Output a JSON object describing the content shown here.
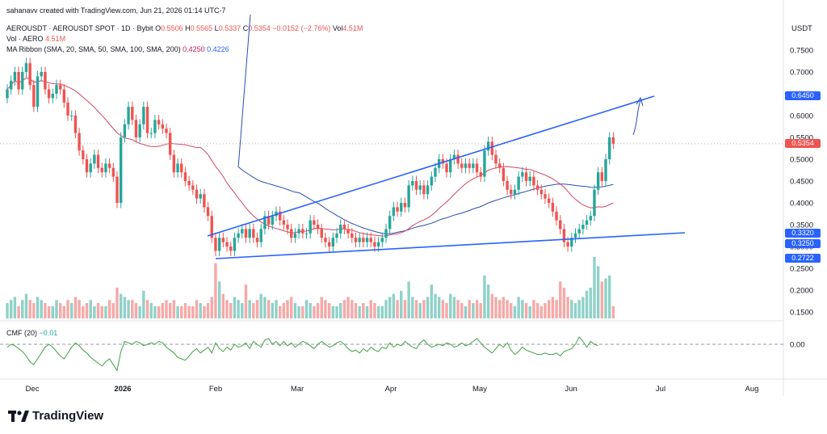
{
  "header": {
    "created": "sahanavv created with TradingView.com, Jun 21, 2026 01:14 UTC-7",
    "symbol": "AEROUSDT · AEROUSDT SPOT · 1D · Bybit",
    "o_label": "O",
    "o": "0.5506",
    "h_label": "H",
    "h": "0.5565",
    "l_label": "L",
    "l": "0.5337",
    "c_label": "C",
    "c": "0.5354",
    "change": "−0.0152 (−2.76%)",
    "vol_label": "Vol",
    "vol": "4.51M",
    "vol_row_label": "Vol · AERO",
    "vol_row_value": "4.51M",
    "ma_label": "MA Ribbon (SMA, 20, SMA, 50, SMA, 100, SMA, 200)",
    "ma_val1": "0.4250",
    "ma_val2": "0.4226",
    "cmf_label": "CMF (20)",
    "cmf_value": "−0.01",
    "currency": "USDT"
  },
  "colors": {
    "up": "#26a69a",
    "down": "#ef5350",
    "ma50": "#d84565",
    "ma100": "#2a4db5",
    "trend": "#2962ff",
    "cmf": "#43a047"
  },
  "tags": {
    "t1": "0.6450",
    "t2": "0.5354",
    "t3": "0.3320",
    "t4": "0.3250",
    "t5": "0.2722"
  },
  "logo": {
    "text": "TradingView"
  },
  "chart_data": {
    "type": "candlestick",
    "x_ticks": [
      "Dec",
      "2026",
      "Feb",
      "Mar",
      "Apr",
      "May",
      "Jun",
      "Jul",
      "Aug"
    ],
    "y_ticks": [
      "0.7500",
      "0.7000",
      "0.6500",
      "0.6000",
      "0.5500",
      "0.5000",
      "0.4500",
      "0.4000",
      "0.3500",
      "0.3000",
      "0.2500",
      "0.2000",
      "0.1500"
    ],
    "cmf_ticks": [
      "0.00"
    ],
    "ylim": [
      0.13,
      0.8
    ],
    "close": [
      0.66,
      0.68,
      0.7,
      0.66,
      0.7,
      0.72,
      0.67,
      0.62,
      0.69,
      0.7,
      0.66,
      0.64,
      0.65,
      0.67,
      0.66,
      0.63,
      0.6,
      0.6,
      0.56,
      0.52,
      0.5,
      0.47,
      0.49,
      0.51,
      0.48,
      0.47,
      0.49,
      0.48,
      0.46,
      0.4,
      0.55,
      0.58,
      0.62,
      0.59,
      0.55,
      0.58,
      0.62,
      0.56,
      0.56,
      0.59,
      0.58,
      0.57,
      0.56,
      0.51,
      0.47,
      0.49,
      0.47,
      0.45,
      0.44,
      0.43,
      0.41,
      0.42,
      0.39,
      0.37,
      0.32,
      0.29,
      0.32,
      0.31,
      0.3,
      0.29,
      0.32,
      0.33,
      0.34,
      0.32,
      0.34,
      0.32,
      0.31,
      0.34,
      0.37,
      0.35,
      0.37,
      0.38,
      0.36,
      0.35,
      0.34,
      0.32,
      0.33,
      0.34,
      0.33,
      0.33,
      0.36,
      0.35,
      0.34,
      0.32,
      0.31,
      0.3,
      0.32,
      0.33,
      0.35,
      0.34,
      0.33,
      0.32,
      0.31,
      0.32,
      0.31,
      0.32,
      0.31,
      0.3,
      0.31,
      0.32,
      0.34,
      0.37,
      0.39,
      0.38,
      0.4,
      0.39,
      0.44,
      0.45,
      0.43,
      0.44,
      0.42,
      0.44,
      0.46,
      0.48,
      0.5,
      0.49,
      0.47,
      0.5,
      0.51,
      0.49,
      0.48,
      0.49,
      0.48,
      0.49,
      0.47,
      0.46,
      0.52,
      0.54,
      0.51,
      0.49,
      0.48,
      0.45,
      0.43,
      0.42,
      0.43,
      0.46,
      0.47,
      0.45,
      0.46,
      0.44,
      0.43,
      0.42,
      0.41,
      0.4,
      0.38,
      0.36,
      0.34,
      0.31,
      0.3,
      0.32,
      0.33,
      0.34,
      0.35,
      0.36,
      0.37,
      0.43,
      0.47,
      0.45,
      0.5,
      0.55,
      0.5354
    ],
    "volume_pct": [
      0.25,
      0.3,
      0.35,
      0.2,
      0.3,
      0.4,
      0.3,
      0.25,
      0.35,
      0.3,
      0.25,
      0.2,
      0.2,
      0.3,
      0.25,
      0.2,
      0.3,
      0.25,
      0.35,
      0.3,
      0.2,
      0.25,
      0.3,
      0.2,
      0.25,
      0.2,
      0.2,
      0.3,
      0.25,
      0.5,
      0.4,
      0.35,
      0.3,
      0.3,
      0.25,
      0.2,
      0.45,
      0.3,
      0.25,
      0.2,
      0.2,
      0.25,
      0.3,
      0.25,
      0.3,
      0.2,
      0.2,
      0.25,
      0.2,
      0.2,
      0.3,
      0.25,
      0.2,
      0.25,
      0.35,
      0.9,
      0.6,
      0.4,
      0.3,
      0.25,
      0.35,
      0.3,
      0.25,
      0.55,
      0.3,
      0.25,
      0.3,
      0.4,
      0.35,
      0.3,
      0.25,
      0.3,
      0.2,
      0.25,
      0.3,
      0.35,
      0.25,
      0.2,
      0.2,
      0.3,
      0.25,
      0.2,
      0.25,
      0.35,
      0.3,
      0.25,
      0.2,
      0.2,
      0.25,
      0.3,
      0.35,
      0.3,
      0.25,
      0.2,
      0.25,
      0.2,
      0.3,
      0.25,
      0.2,
      0.2,
      0.3,
      0.35,
      0.4,
      0.3,
      0.45,
      0.3,
      0.6,
      0.35,
      0.3,
      0.25,
      0.3,
      0.35,
      0.55,
      0.4,
      0.35,
      0.3,
      0.25,
      0.4,
      0.35,
      0.3,
      0.25,
      0.2,
      0.3,
      0.25,
      0.3,
      0.25,
      0.7,
      0.55,
      0.4,
      0.35,
      0.3,
      0.35,
      0.3,
      0.25,
      0.2,
      0.35,
      0.3,
      0.25,
      0.2,
      0.3,
      0.25,
      0.2,
      0.25,
      0.3,
      0.35,
      0.3,
      0.6,
      0.5,
      0.35,
      0.3,
      0.25,
      0.3,
      0.35,
      0.45,
      0.5,
      1.0,
      0.85,
      0.6,
      0.65,
      0.7,
      0.2
    ],
    "cmf": [
      -0.02,
      0.0,
      -0.01,
      -0.03,
      -0.05,
      -0.08,
      -0.12,
      -0.14,
      -0.1,
      -0.06,
      -0.02,
      0.0,
      -0.02,
      -0.05,
      -0.08,
      -0.1,
      -0.06,
      -0.02,
      0.01,
      -0.01,
      -0.04,
      -0.06,
      -0.09,
      -0.11,
      -0.13,
      -0.15,
      -0.12,
      -0.1,
      -0.14,
      -0.18,
      -0.05,
      0.02,
      0.01,
      0.0,
      0.02,
      0.01,
      -0.01,
      0.0,
      0.01,
      0.0,
      0.02,
      0.01,
      -0.02,
      -0.04,
      -0.06,
      -0.09,
      -0.1,
      -0.11,
      -0.08,
      -0.05,
      -0.03,
      -0.06,
      -0.04,
      -0.02,
      -0.06,
      0.01,
      -0.03,
      -0.05,
      -0.02,
      -0.04,
      0.0,
      -0.02,
      -0.01,
      0.01,
      -0.03,
      0.02,
      0.0,
      -0.02,
      0.03,
      0.04,
      0.0,
      0.02,
      -0.01,
      0.02,
      -0.01,
      0.01,
      -0.02,
      0.0,
      0.02,
      0.01,
      -0.01,
      -0.03,
      0.0,
      0.02,
      0.0,
      -0.02,
      -0.01,
      0.01,
      0.02,
      0.0,
      -0.03,
      -0.05,
      -0.04,
      -0.06,
      -0.03,
      -0.05,
      -0.02,
      -0.04,
      -0.05,
      -0.02,
      -0.03,
      0.01,
      -0.02,
      0.0,
      -0.01,
      0.02,
      0.0,
      -0.02,
      -0.03,
      0.01,
      0.03,
      0.0,
      -0.02,
      -0.01,
      0.0,
      -0.01,
      0.01,
      0.0,
      -0.02,
      -0.01,
      0.01,
      -0.01,
      0.0,
      0.02,
      0.04,
      0.01,
      -0.02,
      -0.04,
      -0.06,
      -0.03,
      0.0,
      -0.02,
      0.01,
      -0.04,
      -0.07,
      -0.05,
      -0.02,
      -0.04,
      -0.05,
      -0.06,
      -0.07,
      -0.07,
      -0.06,
      -0.07,
      -0.07,
      -0.06,
      -0.08,
      -0.05,
      -0.04,
      -0.03,
      0.0,
      0.05,
      0.02,
      -0.02,
      0.02,
      0.0,
      -0.01
    ]
  }
}
